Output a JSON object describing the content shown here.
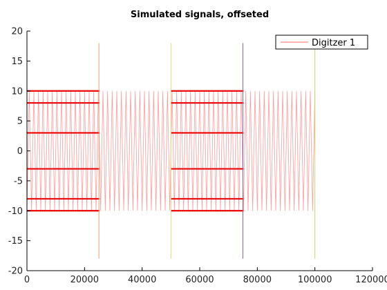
{
  "chart_data": {
    "type": "line",
    "title": "Simulated signals, offseted",
    "xlabel": "",
    "ylabel": "",
    "xlim": [
      0,
      120000
    ],
    "ylim": [
      -20,
      20
    ],
    "x_ticks": [
      0,
      20000,
      40000,
      60000,
      80000,
      100000,
      120000
    ],
    "y_ticks": [
      -20,
      -15,
      -10,
      -5,
      0,
      5,
      10,
      15,
      20
    ],
    "x_tick_labels": [
      "0",
      "20000",
      "40000",
      "60000",
      "80000",
      "100000",
      "120000"
    ],
    "y_tick_labels": [
      "-20",
      "-15",
      "-10",
      "-5",
      "0",
      "5",
      "10",
      "15",
      "20"
    ],
    "grid": false,
    "legend": {
      "entries": [
        "Digitzer 1"
      ],
      "placement": "top-right"
    },
    "series": [
      {
        "name": "Digitzer 1",
        "kind": "oscillating",
        "color": "#ff9a9a",
        "x_range": [
          0,
          100000
        ],
        "amplitude_range": [
          -10,
          10
        ]
      }
    ],
    "marker_levels": [
      10,
      8,
      3,
      -3,
      -8,
      -10
    ],
    "marker_segments": [
      [
        0,
        25000
      ],
      [
        50000,
        75000
      ]
    ],
    "marker_color": "#ee0000",
    "vertical_markers": [
      {
        "x": 0,
        "y_range": [
          -18,
          18
        ],
        "color": "#4a8bd6"
      },
      {
        "x": 25000,
        "y_range": [
          -18,
          18
        ],
        "color": "#e8a070"
      },
      {
        "x": 50000,
        "y_range": [
          -18,
          18
        ],
        "color": "#e8d27a"
      },
      {
        "x": 75000,
        "y_range": [
          -18,
          18
        ],
        "color": "#8a60b0"
      },
      {
        "x": 100000,
        "y_range": [
          -18,
          18
        ],
        "color": "#c8d870"
      }
    ]
  }
}
